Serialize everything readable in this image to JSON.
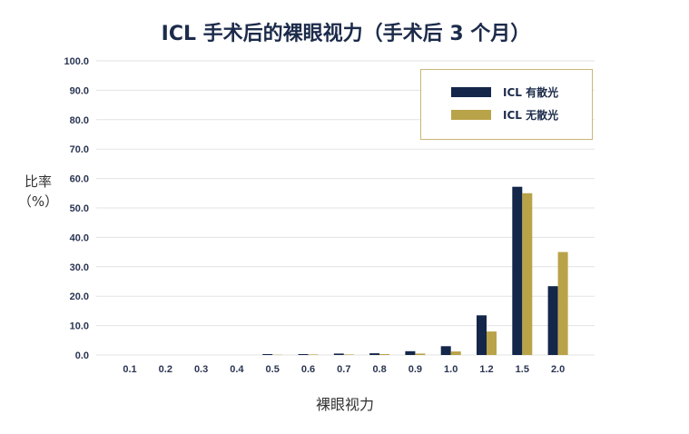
{
  "chart_data": {
    "type": "bar",
    "title": "ICL 手术后的裸眼视力（手术后 3 个月）",
    "ylabel_line1": "比率",
    "ylabel_line2": "（%）",
    "xlabel": "裸眼视力",
    "categories": [
      "0.1",
      "0.2",
      "0.3",
      "0.4",
      "0.5",
      "0.6",
      "0.7",
      "0.8",
      "0.9",
      "1.0",
      "1.2",
      "1.5",
      "2.0"
    ],
    "ylim": [
      0,
      100
    ],
    "yticks": [
      "0.0",
      "10.0",
      "20.0",
      "30.0",
      "40.0",
      "50.0",
      "60.0",
      "70.0",
      "80.0",
      "90.0",
      "100.0"
    ],
    "grid": true,
    "legend_position": "top-right",
    "series": [
      {
        "name": "ICL 有散光",
        "color": "#14264a",
        "values": [
          0,
          0,
          0,
          0,
          0.3,
          0.3,
          0.5,
          0.6,
          1.3,
          3.0,
          13.5,
          57.2,
          23.4
        ]
      },
      {
        "name": "ICL 无散光",
        "color": "#b9a348",
        "values": [
          0,
          0,
          0,
          0,
          0.1,
          0.2,
          0.2,
          0.3,
          0.5,
          1.2,
          8.0,
          55.0,
          35.0
        ]
      }
    ]
  }
}
